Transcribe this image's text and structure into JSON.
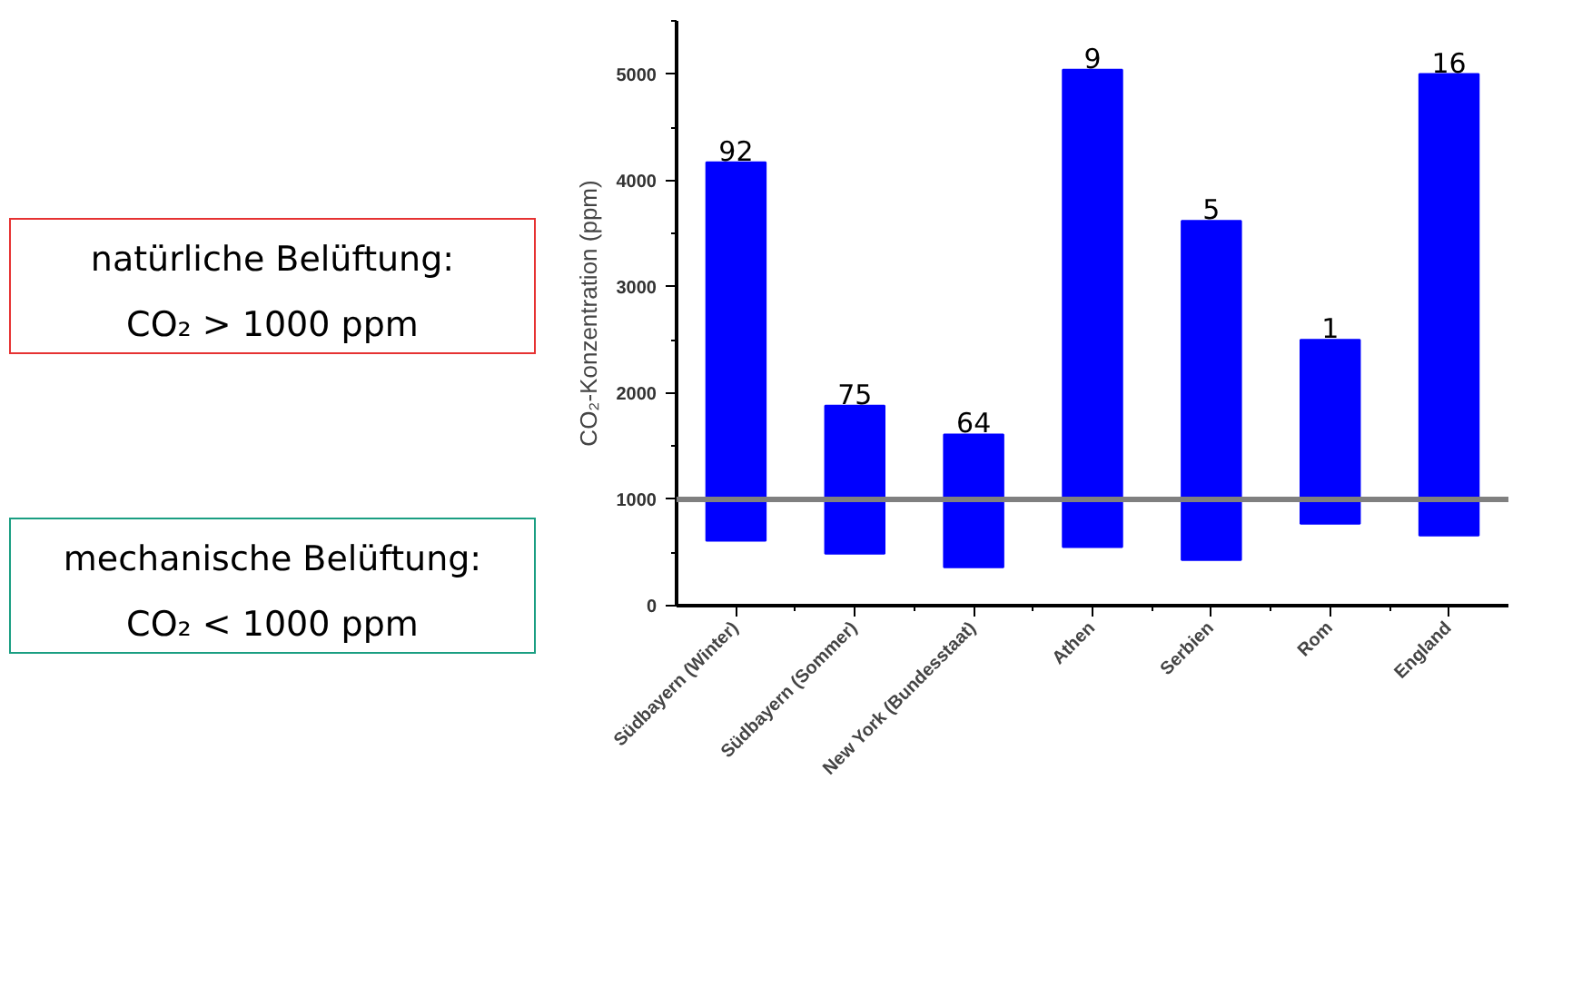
{
  "chart_data": {
    "type": "bar",
    "ylabel": "CO₂-Konzentration (ppm)",
    "categories": [
      "Südbayern (Winter)",
      "Südbayern (Sommer)",
      "New York (Bundesstaat)",
      "Athen",
      "Serbien",
      "Rom",
      "England"
    ],
    "base": [
      610,
      490,
      360,
      550,
      430,
      770,
      660
    ],
    "values": [
      3560,
      1390,
      1250,
      4490,
      3190,
      1730,
      4340
    ],
    "color": "#0000ff",
    "ylim": [
      0,
      5500
    ],
    "yticks": [
      0,
      1000,
      2000,
      3000,
      4000,
      5000
    ],
    "ref_lines": [
      {
        "axis": "y",
        "value": 1000,
        "color": "#808080"
      }
    ],
    "annotations": [
      "natürliche Belüftung:\nCO₂ > 1000 ppm",
      "mechanische Belüftung:\nCO₂ < 1000 ppm",
      {
        "text": "92",
        "x": "Südbayern (Winter)",
        "y": 4170
      },
      {
        "text": "75",
        "x": "Südbayern (Sommer)",
        "y": 1880
      },
      {
        "text": "64",
        "x": "New York (Bundesstaat)",
        "y": 1610
      },
      {
        "text": "9",
        "x": "Athen",
        "y": 5040
      },
      {
        "text": "5",
        "x": "Serbien",
        "y": 3620
      },
      {
        "text": "1",
        "x": "Rom",
        "y": 2500
      },
      {
        "text": "16",
        "x": "England",
        "y": 5000
      }
    ],
    "grid": false
  }
}
